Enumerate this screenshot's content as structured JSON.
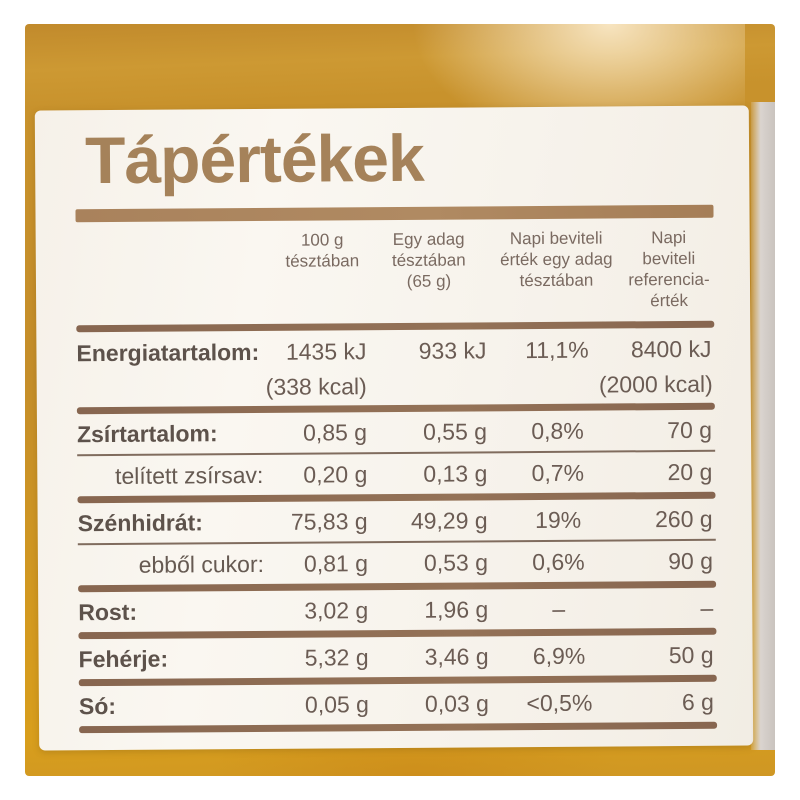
{
  "panel": {
    "title": "Tápértékek",
    "table": {
      "headers": [
        {
          "lines": [
            "100 g",
            "tésztában"
          ]
        },
        {
          "lines": [
            "Egy adag",
            "tésztában",
            "(65 g)"
          ]
        },
        {
          "lines": [
            "Napi beviteli",
            "érték egy adag",
            "tésztában"
          ]
        },
        {
          "lines": [
            "Napi beviteli",
            "referencia-",
            "érték"
          ]
        }
      ],
      "rows": [
        {
          "label": "Energiatartalom:",
          "values": [
            "1435 kJ",
            "933 kJ",
            "11,1%",
            "8400 kJ"
          ],
          "secondary_per_100g": "(338 kcal)",
          "secondary_reference": "(2000 kcal)"
        },
        {
          "label": "Zsírtartalom:",
          "values": [
            "0,85 g",
            "0,55 g",
            "0,8%",
            "70 g"
          ]
        },
        {
          "label": "telített zsírsav:",
          "values": [
            "0,20 g",
            "0,13 g",
            "0,7%",
            "20 g"
          ]
        },
        {
          "label": "Szénhidrát:",
          "values": [
            "75,83 g",
            "49,29 g",
            "19%",
            "260 g"
          ]
        },
        {
          "label": "ebből cukor:",
          "values": [
            "0,81 g",
            "0,53 g",
            "0,6%",
            "90 g"
          ]
        },
        {
          "label": "Rost:",
          "values": [
            "3,02 g",
            "1,96 g",
            "–",
            "–"
          ]
        },
        {
          "label": "Fehérje:",
          "values": [
            "5,32 g",
            "3,46 g",
            "6,9%",
            "50 g"
          ]
        },
        {
          "label": "Só:",
          "values": [
            "0,05 g",
            "0,03 g",
            "<0,5%",
            "6 g"
          ]
        }
      ]
    }
  },
  "colors": {
    "title_brown": "#a5825a",
    "separator_brown": "#8a6a50",
    "text_brown": "#6b5c54",
    "label_background": "#f8f4ed",
    "package_amber": "#cd9529",
    "package_edge_gray": "#d2ccc7",
    "page_margin": "#ffffff"
  }
}
